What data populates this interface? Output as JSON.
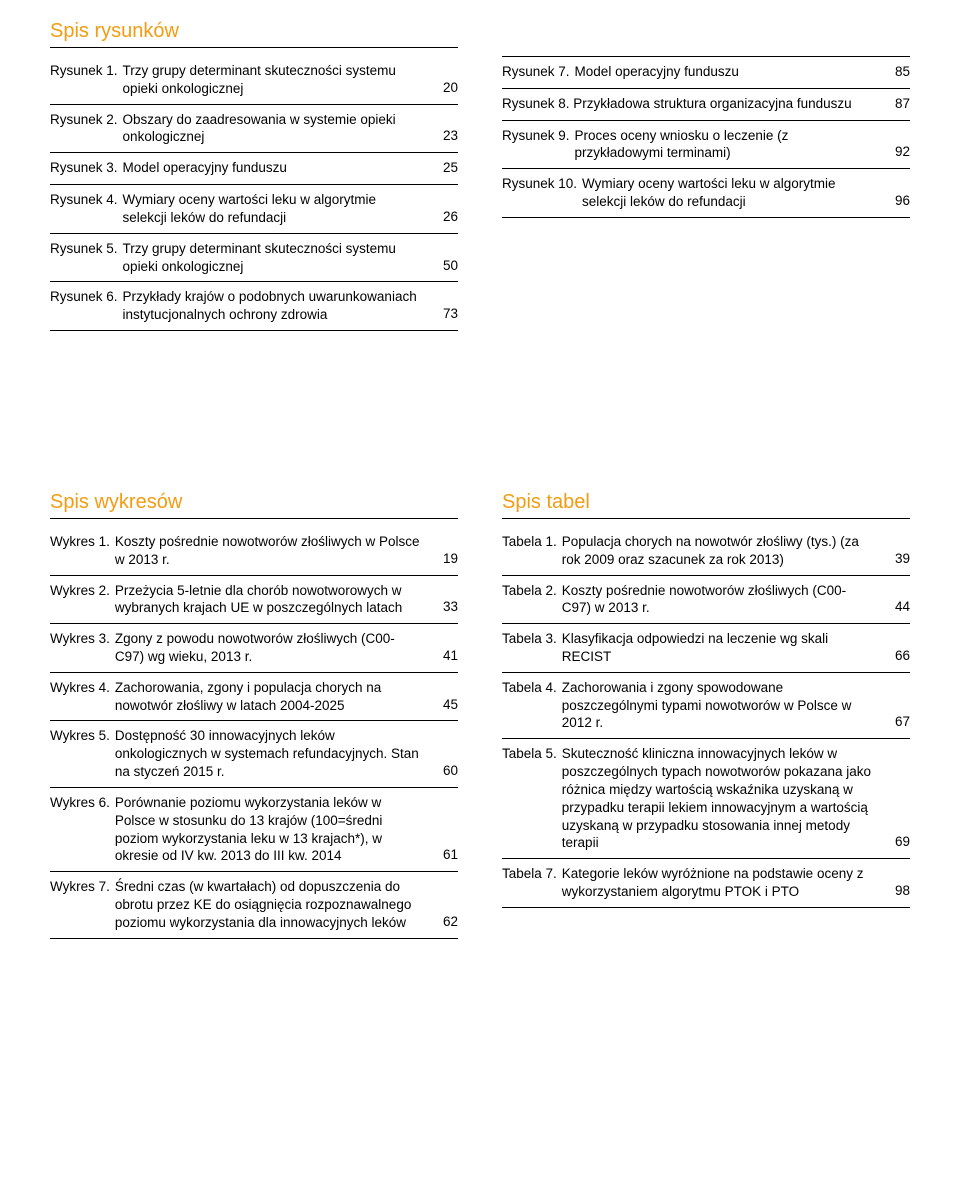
{
  "headings": {
    "rysunkow": "Spis rysunków",
    "wykresow": "Spis wykresów",
    "tabel": "Spis tabel"
  },
  "colors": {
    "accent": "#f39c12",
    "text": "#000000",
    "rule": "#000000",
    "background": "#ffffff"
  },
  "rysunki_left": [
    {
      "label": "Rysunek 1.",
      "title": "Trzy grupy determinant skuteczności systemu opieki onkologicznej",
      "page": "20"
    },
    {
      "label": "Rysunek 2.",
      "title": "Obszary do zaadresowania w systemie opieki onkologicznej",
      "page": "23"
    },
    {
      "label": "Rysunek 3.",
      "title": "Model operacyjny funduszu",
      "page": "25"
    },
    {
      "label": "Rysunek 4.",
      "title": "Wymiary oceny wartości leku w algorytmie selekcji leków do refundacji",
      "page": "26"
    },
    {
      "label": "Rysunek 5.",
      "title": "Trzy grupy determinant skuteczności systemu opieki onkologicznej",
      "page": "50"
    },
    {
      "label": "Rysunek 6.",
      "title": "Przykłady krajów o podobnych uwarunkowaniach instytucjonalnych ochrony zdrowia",
      "page": "73"
    }
  ],
  "rysunki_right": [
    {
      "label": "Rysunek 7.",
      "title": "Model operacyjny funduszu",
      "page": "85"
    },
    {
      "label": "Rysunek 8.",
      "title": "Przykładowa struktura organizacyjna funduszu",
      "page": "87",
      "title_hang": true
    },
    {
      "label": "Rysunek 9.",
      "title": "Proces oceny wniosku o leczenie (z przykładowymi terminami)",
      "page": "92"
    },
    {
      "label": "Rysunek 10.",
      "title": "Wymiary oceny wartości leku w algorytmie selekcji leków do refundacji",
      "page": "96"
    }
  ],
  "wykresy": [
    {
      "label": "Wykres 1.",
      "title": "Koszty pośrednie nowotworów złośliwych w Polsce w 2013 r.",
      "page": "19"
    },
    {
      "label": "Wykres 2.",
      "title": "Przeżycia 5-letnie dla chorób nowotworowych w wybranych krajach UE w poszczególnych latach",
      "page": "33"
    },
    {
      "label": "Wykres 3.",
      "title": "Zgony z powodu nowotworów złośliwych (C00-C97) wg wieku, 2013 r.",
      "page": "41"
    },
    {
      "label": "Wykres 4.",
      "title": "Zachorowania, zgony i populacja chorych na nowotwór złośliwy w latach 2004-2025",
      "page": "45"
    },
    {
      "label": "Wykres 5.",
      "title": "Dostępność 30 innowacyjnych leków onkologicznych w systemach refundacyjnych. Stan na styczeń 2015 r.",
      "page": "60"
    },
    {
      "label": "Wykres 6.",
      "title": "Porównanie poziomu wykorzystania leków w Polsce w stosunku do 13 krajów (100=średni poziom wykorzystania leku w 13 krajach*), w okresie od IV kw. 2013 do III kw. 2014",
      "page": "61"
    },
    {
      "label": "Wykres 7.",
      "title": "Średni czas (w kwartałach) od dopuszczenia do obrotu przez KE do osiągnięcia rozpoznawalnego poziomu wykorzystania dla innowacyjnych leków",
      "page": "62"
    }
  ],
  "tabele": [
    {
      "label": "Tabela 1.",
      "title": "Populacja chorych na nowotwór złośliwy (tys.) (za rok 2009 oraz szacunek za rok 2013)",
      "page": "39"
    },
    {
      "label": "Tabela 2.",
      "title": "Koszty pośrednie nowotworów złośliwych (C00-C97) w 2013 r.",
      "page": "44"
    },
    {
      "label": "Tabela 3.",
      "title": "Klasyfikacja odpowiedzi na leczenie wg skali RECIST",
      "page": "66"
    },
    {
      "label": "Tabela 4.",
      "title": "Zachorowania i zgony spowodowane poszczególnymi typami nowotworów w Polsce w 2012 r.",
      "page": "67"
    },
    {
      "label": "Tabela 5.",
      "title": "Skuteczność kliniczna innowacyjnych leków w poszczególnych typach nowotworów pokazana jako różnica między wartością wskaźnika uzyskaną w przypadku terapii lekiem innowacyjnym a wartością uzyskaną w przypadku stosowania  innej metody terapii",
      "page": "69"
    },
    {
      "label": "Tabela 7.",
      "title": "Kategorie leków wyróżnione na podstawie oceny z wykorzystaniem algorytmu PTOK i PTO",
      "page": "98"
    }
  ]
}
